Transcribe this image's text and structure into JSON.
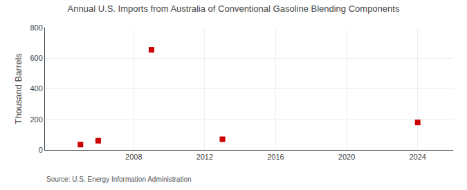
{
  "chart_data": {
    "type": "scatter",
    "title": "Annual U.S. Imports from Australia of Conventional Gasoline Blending Components",
    "ylabel": "Thousand Barrels",
    "annotations": [
      "Source: U.S. Energy Information Administration"
    ],
    "x": [
      2005,
      2006,
      2009,
      2013,
      2024
    ],
    "values": [
      35,
      60,
      655,
      70,
      180
    ],
    "color": "#cc0000",
    "marker": "square",
    "xlim": [
      2003,
      2026
    ],
    "xticks": [
      2008,
      2012,
      2016,
      2020,
      2024
    ],
    "ylim": [
      0,
      800
    ],
    "yticks": [
      0,
      200,
      400,
      600,
      800
    ],
    "grid": true
  }
}
